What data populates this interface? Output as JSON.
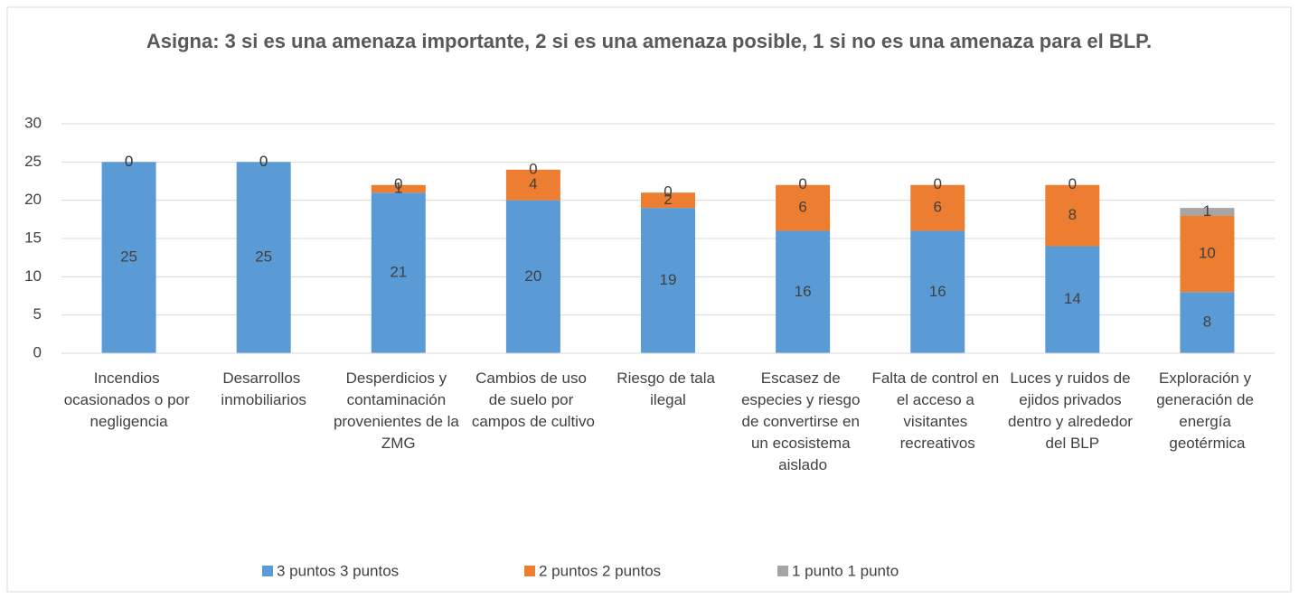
{
  "chart_data": {
    "type": "stacked_bar",
    "title": "Asigna: 3 si es una amenaza importante, 2 si es una amenaza posible, 1 si no es una amenaza para el BLP.",
    "categories": [
      "Incendios ocasionados o por negligencia",
      "Desarrollos inmobiliarios",
      "Desperdicios y contaminación provenientes de la ZMG",
      "Cambios de uso de suelo por campos de cultivo",
      "Riesgo de tala ilegal",
      "Escasez de especies y riesgo de convertirse en un ecosistema aislado",
      "Falta de control en el acceso a visitantes recreativos",
      "Luces y ruidos de ejidos privados dentro y alrededor del BLP",
      "Exploración y generación de energía geotérmica"
    ],
    "series": [
      {
        "name": "3 puntos 3 puntos",
        "color": "#5b9bd5",
        "values": [
          25,
          25,
          21,
          20,
          19,
          16,
          16,
          14,
          8
        ]
      },
      {
        "name": "2 puntos 2 puntos",
        "color": "#ed7d31",
        "values": [
          0,
          0,
          1,
          4,
          2,
          6,
          6,
          8,
          10
        ]
      },
      {
        "name": "1 punto 1 punto",
        "color": "#a5a5a5",
        "values": [
          0,
          0,
          0,
          0,
          0,
          0,
          0,
          0,
          1
        ]
      }
    ],
    "ylim": [
      0,
      30
    ],
    "yticks": [
      0,
      5,
      10,
      15,
      20,
      25,
      30
    ],
    "grid": true,
    "legend": "bottom"
  }
}
